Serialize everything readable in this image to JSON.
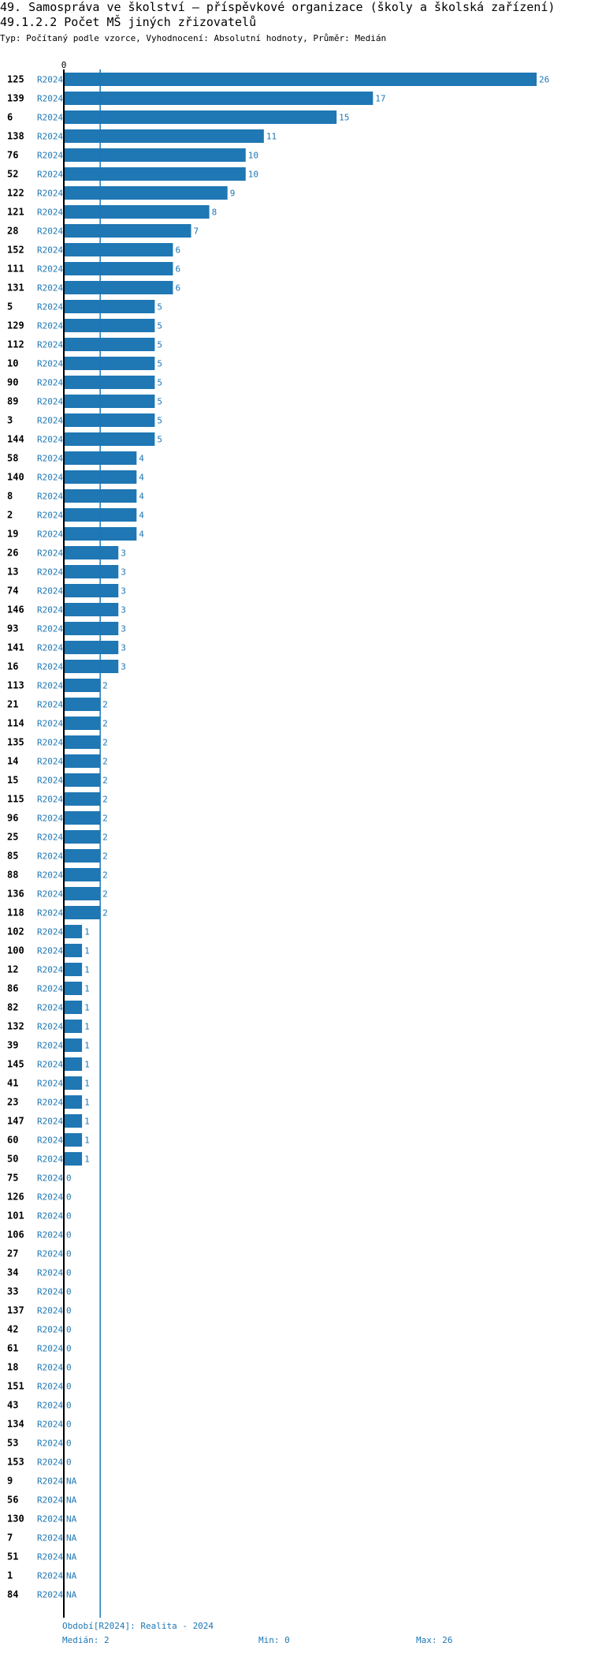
{
  "header": {
    "title": "49. Samospráva ve školství – příspěvkové organizace (školy a školská zařízení)",
    "subtitle": "49.1.2.2 Počet MŠ jiných zřizovatelů",
    "meta": "Typ: Počítaný podle vzorce, Vyhodnocení: Absolutní hodnoty, Průměr: Medián"
  },
  "chart_data": {
    "type": "bar",
    "orientation": "horizontal",
    "x_tick_labels": [
      "0"
    ],
    "xlim": [
      0,
      26
    ],
    "median": 2,
    "colors": {
      "bar": "#1f77b4",
      "median_line": "#1f77b4",
      "axis": "#000000"
    },
    "rows": [
      {
        "id": "125",
        "period": "R2024",
        "value": 26,
        "label": "26"
      },
      {
        "id": "139",
        "period": "R2024",
        "value": 17,
        "label": "17"
      },
      {
        "id": "6",
        "period": "R2024",
        "value": 15,
        "label": "15"
      },
      {
        "id": "138",
        "period": "R2024",
        "value": 11,
        "label": "11"
      },
      {
        "id": "76",
        "period": "R2024",
        "value": 10,
        "label": "10"
      },
      {
        "id": "52",
        "period": "R2024",
        "value": 10,
        "label": "10"
      },
      {
        "id": "122",
        "period": "R2024",
        "value": 9,
        "label": "9"
      },
      {
        "id": "121",
        "period": "R2024",
        "value": 8,
        "label": "8"
      },
      {
        "id": "28",
        "period": "R2024",
        "value": 7,
        "label": "7"
      },
      {
        "id": "152",
        "period": "R2024",
        "value": 6,
        "label": "6"
      },
      {
        "id": "111",
        "period": "R2024",
        "value": 6,
        "label": "6"
      },
      {
        "id": "131",
        "period": "R2024",
        "value": 6,
        "label": "6"
      },
      {
        "id": "5",
        "period": "R2024",
        "value": 5,
        "label": "5"
      },
      {
        "id": "129",
        "period": "R2024",
        "value": 5,
        "label": "5"
      },
      {
        "id": "112",
        "period": "R2024",
        "value": 5,
        "label": "5"
      },
      {
        "id": "10",
        "period": "R2024",
        "value": 5,
        "label": "5"
      },
      {
        "id": "90",
        "period": "R2024",
        "value": 5,
        "label": "5"
      },
      {
        "id": "89",
        "period": "R2024",
        "value": 5,
        "label": "5"
      },
      {
        "id": "3",
        "period": "R2024",
        "value": 5,
        "label": "5"
      },
      {
        "id": "144",
        "period": "R2024",
        "value": 5,
        "label": "5"
      },
      {
        "id": "58",
        "period": "R2024",
        "value": 4,
        "label": "4"
      },
      {
        "id": "140",
        "period": "R2024",
        "value": 4,
        "label": "4"
      },
      {
        "id": "8",
        "period": "R2024",
        "value": 4,
        "label": "4"
      },
      {
        "id": "2",
        "period": "R2024",
        "value": 4,
        "label": "4"
      },
      {
        "id": "19",
        "period": "R2024",
        "value": 4,
        "label": "4"
      },
      {
        "id": "26",
        "period": "R2024",
        "value": 3,
        "label": "3"
      },
      {
        "id": "13",
        "period": "R2024",
        "value": 3,
        "label": "3"
      },
      {
        "id": "74",
        "period": "R2024",
        "value": 3,
        "label": "3"
      },
      {
        "id": "146",
        "period": "R2024",
        "value": 3,
        "label": "3"
      },
      {
        "id": "93",
        "period": "R2024",
        "value": 3,
        "label": "3"
      },
      {
        "id": "141",
        "period": "R2024",
        "value": 3,
        "label": "3"
      },
      {
        "id": "16",
        "period": "R2024",
        "value": 3,
        "label": "3"
      },
      {
        "id": "113",
        "period": "R2024",
        "value": 2,
        "label": "2"
      },
      {
        "id": "21",
        "period": "R2024",
        "value": 2,
        "label": "2"
      },
      {
        "id": "114",
        "period": "R2024",
        "value": 2,
        "label": "2"
      },
      {
        "id": "135",
        "period": "R2024",
        "value": 2,
        "label": "2"
      },
      {
        "id": "14",
        "period": "R2024",
        "value": 2,
        "label": "2"
      },
      {
        "id": "15",
        "period": "R2024",
        "value": 2,
        "label": "2"
      },
      {
        "id": "115",
        "period": "R2024",
        "value": 2,
        "label": "2"
      },
      {
        "id": "96",
        "period": "R2024",
        "value": 2,
        "label": "2"
      },
      {
        "id": "25",
        "period": "R2024",
        "value": 2,
        "label": "2"
      },
      {
        "id": "85",
        "period": "R2024",
        "value": 2,
        "label": "2"
      },
      {
        "id": "88",
        "period": "R2024",
        "value": 2,
        "label": "2"
      },
      {
        "id": "136",
        "period": "R2024",
        "value": 2,
        "label": "2"
      },
      {
        "id": "118",
        "period": "R2024",
        "value": 2,
        "label": "2"
      },
      {
        "id": "102",
        "period": "R2024",
        "value": 1,
        "label": "1"
      },
      {
        "id": "100",
        "period": "R2024",
        "value": 1,
        "label": "1"
      },
      {
        "id": "12",
        "period": "R2024",
        "value": 1,
        "label": "1"
      },
      {
        "id": "86",
        "period": "R2024",
        "value": 1,
        "label": "1"
      },
      {
        "id": "82",
        "period": "R2024",
        "value": 1,
        "label": "1"
      },
      {
        "id": "132",
        "period": "R2024",
        "value": 1,
        "label": "1"
      },
      {
        "id": "39",
        "period": "R2024",
        "value": 1,
        "label": "1"
      },
      {
        "id": "145",
        "period": "R2024",
        "value": 1,
        "label": "1"
      },
      {
        "id": "41",
        "period": "R2024",
        "value": 1,
        "label": "1"
      },
      {
        "id": "23",
        "period": "R2024",
        "value": 1,
        "label": "1"
      },
      {
        "id": "147",
        "period": "R2024",
        "value": 1,
        "label": "1"
      },
      {
        "id": "60",
        "period": "R2024",
        "value": 1,
        "label": "1"
      },
      {
        "id": "50",
        "period": "R2024",
        "value": 1,
        "label": "1"
      },
      {
        "id": "75",
        "period": "R2024",
        "value": 0,
        "label": "0"
      },
      {
        "id": "126",
        "period": "R2024",
        "value": 0,
        "label": "0"
      },
      {
        "id": "101",
        "period": "R2024",
        "value": 0,
        "label": "0"
      },
      {
        "id": "106",
        "period": "R2024",
        "value": 0,
        "label": "0"
      },
      {
        "id": "27",
        "period": "R2024",
        "value": 0,
        "label": "0"
      },
      {
        "id": "34",
        "period": "R2024",
        "value": 0,
        "label": "0"
      },
      {
        "id": "33",
        "period": "R2024",
        "value": 0,
        "label": "0"
      },
      {
        "id": "137",
        "period": "R2024",
        "value": 0,
        "label": "0"
      },
      {
        "id": "42",
        "period": "R2024",
        "value": 0,
        "label": "0"
      },
      {
        "id": "61",
        "period": "R2024",
        "value": 0,
        "label": "0"
      },
      {
        "id": "18",
        "period": "R2024",
        "value": 0,
        "label": "0"
      },
      {
        "id": "151",
        "period": "R2024",
        "value": 0,
        "label": "0"
      },
      {
        "id": "43",
        "period": "R2024",
        "value": 0,
        "label": "0"
      },
      {
        "id": "134",
        "period": "R2024",
        "value": 0,
        "label": "0"
      },
      {
        "id": "53",
        "period": "R2024",
        "value": 0,
        "label": "0"
      },
      {
        "id": "153",
        "period": "R2024",
        "value": 0,
        "label": "0"
      },
      {
        "id": "9",
        "period": "R2024",
        "value": null,
        "label": "NA"
      },
      {
        "id": "56",
        "period": "R2024",
        "value": null,
        "label": "NA"
      },
      {
        "id": "130",
        "period": "R2024",
        "value": null,
        "label": "NA"
      },
      {
        "id": "7",
        "period": "R2024",
        "value": null,
        "label": "NA"
      },
      {
        "id": "51",
        "period": "R2024",
        "value": null,
        "label": "NA"
      },
      {
        "id": "1",
        "period": "R2024",
        "value": null,
        "label": "NA"
      },
      {
        "id": "84",
        "period": "R2024",
        "value": null,
        "label": "NA"
      }
    ]
  },
  "footer": {
    "period_line": "Období[R2024]: Realita - 2024",
    "median": "Medián: 2",
    "min": "Min: 0",
    "max": "Max: 26"
  }
}
